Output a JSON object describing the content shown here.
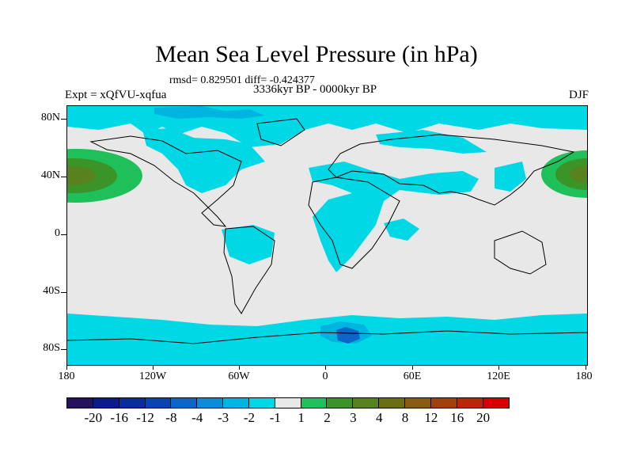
{
  "title": "Mean Sea Level Pressure (in hPa)",
  "stats": "rmsd= 0.829501 diff= -0.424377",
  "period": "3336kyr BP - 0000kyr BP",
  "experiment": "Expt = xQfVU-xqfua",
  "season": "DJF",
  "map": {
    "background_color": "#e8e8e8",
    "y_labels": [
      "80N",
      "40N",
      "0",
      "40S",
      "80S"
    ],
    "x_labels": [
      "180",
      "120W",
      "60W",
      "0",
      "60E",
      "120E",
      "180"
    ]
  },
  "colorbar": {
    "colors": [
      "#24125e",
      "#0d1a8c",
      "#0a2d9c",
      "#0a44b0",
      "#0b66c8",
      "#0b8bd8",
      "#00b4e0",
      "#00d8e6",
      "#e8e8e8",
      "#1fbf5a",
      "#3a9428",
      "#58821e",
      "#6a7010",
      "#8a5a10",
      "#a0400a",
      "#b82808",
      "#d80000"
    ],
    "labels": [
      "-20",
      "-16",
      "-12",
      "-8",
      "-4",
      "-3",
      "-2",
      "-1",
      "1",
      "2",
      "3",
      "4",
      "8",
      "12",
      "16",
      "20"
    ]
  }
}
